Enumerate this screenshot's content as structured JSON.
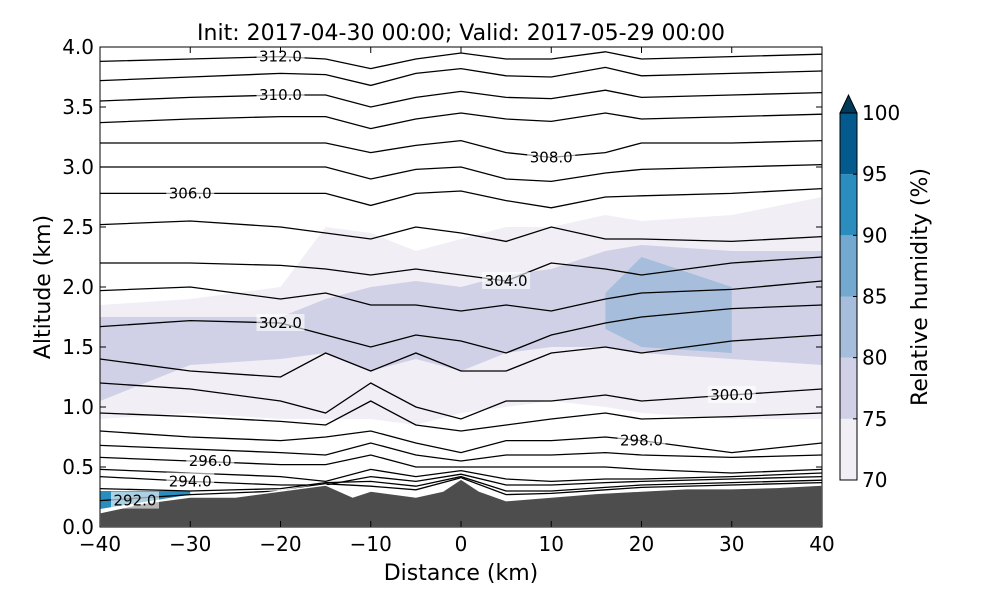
{
  "chart_data": {
    "type": "contour",
    "title": "Init: 2017-04-30 00:00; Valid: 2017-05-29 00:00",
    "x_label": "Distance (km)",
    "y_label": "Altitude (km)",
    "xlim": [
      -40,
      40
    ],
    "ylim": [
      0,
      4
    ],
    "xticks": [
      {
        "value": -40,
        "label": "−40"
      },
      {
        "value": -30,
        "label": "−30"
      },
      {
        "value": -20,
        "label": "−20"
      },
      {
        "value": -10,
        "label": "−10"
      },
      0,
      10,
      20,
      30,
      40
    ],
    "yticks": [
      {
        "value": 0,
        "label": "0.0"
      },
      {
        "value": 0.5,
        "label": "0.5"
      },
      {
        "value": 1,
        "label": "1.0"
      },
      {
        "value": 1.5,
        "label": "1.5"
      },
      {
        "value": 2,
        "label": "2.0"
      },
      {
        "value": 2.5,
        "label": "2.5"
      },
      {
        "value": 3,
        "label": "3.0"
      },
      {
        "value": 3.5,
        "label": "3.5"
      },
      {
        "value": 4,
        "label": "4.0"
      }
    ],
    "grid_x": [
      -40,
      -30,
      -20,
      -15,
      -10,
      -5,
      0,
      5,
      10,
      16,
      20,
      30,
      40
    ],
    "humidity_fill": [
      {
        "level": 70,
        "y_low": [
          0.9,
          0.95,
          0.9,
          0.9,
          0.9,
          0.85,
          0.95,
          1.0,
          1.05,
          1.0,
          0.95,
          0.9,
          0.9
        ],
        "y_high": [
          1.85,
          1.9,
          2.0,
          2.5,
          2.45,
          2.3,
          2.4,
          2.5,
          2.5,
          2.6,
          2.55,
          2.6,
          2.75
        ]
      },
      {
        "level": 75,
        "y_low": [
          1.05,
          1.35,
          1.4,
          1.45,
          1.3,
          1.4,
          1.3,
          1.45,
          1.5,
          1.5,
          1.45,
          1.4,
          1.35
        ],
        "y_high": [
          1.75,
          1.75,
          1.75,
          1.9,
          2.0,
          2.05,
          2.0,
          2.1,
          2.15,
          2.3,
          2.35,
          2.3,
          2.3
        ]
      },
      {
        "level": 80,
        "y_low": [
          null,
          null,
          null,
          null,
          null,
          null,
          null,
          null,
          null,
          1.65,
          1.5,
          1.45,
          null
        ],
        "y_high": [
          null,
          null,
          null,
          null,
          null,
          null,
          null,
          null,
          null,
          1.95,
          2.25,
          2.0,
          null
        ]
      },
      {
        "level": 90,
        "y_low": [
          0.15,
          0.27,
          null,
          null,
          null,
          null,
          null,
          null,
          null,
          null,
          null,
          null,
          null
        ],
        "y_high": [
          0.3,
          0.3,
          null,
          null,
          null,
          null,
          null,
          null,
          null,
          null,
          null,
          null,
          null
        ]
      }
    ],
    "contours": [
      {
        "level": 312,
        "label": "312.0",
        "y": [
          3.88,
          3.9,
          3.92,
          3.9,
          3.82,
          3.9,
          3.95,
          3.9,
          3.9,
          3.96,
          3.9,
          3.92,
          3.94
        ]
      },
      {
        "level": 311,
        "y": [
          3.72,
          3.75,
          3.78,
          3.77,
          3.68,
          3.78,
          3.82,
          3.76,
          3.75,
          3.83,
          3.76,
          3.78,
          3.8
        ]
      },
      {
        "level": 310,
        "label": "310.0",
        "y": [
          3.55,
          3.58,
          3.6,
          3.6,
          3.5,
          3.58,
          3.63,
          3.58,
          3.57,
          3.64,
          3.58,
          3.6,
          3.62
        ]
      },
      {
        "level": 309,
        "y": [
          3.37,
          3.4,
          3.42,
          3.42,
          3.32,
          3.4,
          3.45,
          3.4,
          3.38,
          3.45,
          3.4,
          3.42,
          3.44
        ]
      },
      {
        "level": 308,
        "label": "308.0",
        "y": [
          3.2,
          3.2,
          3.2,
          3.2,
          3.12,
          3.18,
          3.22,
          3.12,
          3.08,
          3.12,
          3.2,
          3.2,
          3.22
        ]
      },
      {
        "level": 307,
        "y": [
          3.0,
          3.0,
          3.0,
          3.0,
          2.9,
          2.98,
          3.0,
          2.9,
          2.88,
          2.95,
          2.98,
          3.0,
          3.02
        ]
      },
      {
        "level": 306,
        "label": "306.0",
        "y": [
          2.78,
          2.78,
          2.78,
          2.78,
          2.68,
          2.78,
          2.8,
          2.72,
          2.66,
          2.75,
          2.76,
          2.78,
          2.82
        ]
      },
      {
        "level": 305,
        "y": [
          2.52,
          2.55,
          2.5,
          2.45,
          2.4,
          2.5,
          2.45,
          2.38,
          2.5,
          2.4,
          2.4,
          2.38,
          2.42
        ]
      },
      {
        "level": 304,
        "label": "304.0",
        "y": [
          2.2,
          2.2,
          2.18,
          2.15,
          2.1,
          2.15,
          2.1,
          2.05,
          2.2,
          2.15,
          2.1,
          2.2,
          2.25
        ]
      },
      {
        "level": 303,
        "y": [
          1.97,
          2.0,
          1.9,
          1.95,
          1.85,
          1.85,
          1.8,
          1.85,
          1.8,
          1.9,
          1.95,
          1.98,
          2.05
        ]
      },
      {
        "level": 302,
        "label": "302.0",
        "y": [
          1.67,
          1.72,
          1.7,
          1.6,
          1.5,
          1.6,
          1.55,
          1.45,
          1.6,
          1.7,
          1.75,
          1.82,
          1.85
        ]
      },
      {
        "level": 301,
        "y": [
          1.4,
          1.3,
          1.25,
          1.45,
          1.3,
          1.45,
          1.3,
          1.3,
          1.45,
          1.5,
          1.45,
          1.55,
          1.6
        ]
      },
      {
        "level": 300,
        "label": "300.0",
        "y": [
          1.2,
          1.15,
          1.05,
          0.95,
          1.2,
          1.0,
          0.9,
          1.05,
          1.05,
          1.1,
          1.05,
          1.1,
          1.15
        ]
      },
      {
        "level": 299,
        "y": [
          0.95,
          0.92,
          0.88,
          0.85,
          1.05,
          0.85,
          0.8,
          0.85,
          0.9,
          0.95,
          0.9,
          0.92,
          0.95
        ]
      },
      {
        "level": 298,
        "label": "298.0",
        "y": [
          0.8,
          0.75,
          0.72,
          0.75,
          0.8,
          0.7,
          0.62,
          0.72,
          0.72,
          0.75,
          0.72,
          0.62,
          0.7
        ]
      },
      {
        "level": 297,
        "y": [
          0.68,
          0.65,
          0.62,
          0.6,
          0.7,
          0.6,
          0.55,
          0.6,
          0.6,
          0.62,
          0.6,
          0.58,
          0.6
        ]
      },
      {
        "level": 296,
        "label": "296.0",
        "y": [
          0.58,
          0.55,
          0.52,
          0.52,
          0.6,
          0.5,
          0.5,
          0.5,
          0.5,
          0.5,
          0.48,
          0.45,
          0.48
        ]
      },
      {
        "level": 295,
        "y": [
          0.48,
          0.45,
          0.42,
          0.38,
          0.48,
          0.42,
          0.47,
          0.4,
          0.38,
          0.4,
          0.4,
          0.42,
          0.45
        ]
      },
      {
        "level": 294,
        "label": "294.0",
        "y": [
          0.42,
          0.38,
          0.35,
          0.35,
          0.42,
          0.38,
          0.44,
          0.35,
          0.35,
          0.37,
          0.38,
          0.4,
          0.42
        ]
      },
      {
        "level": 293,
        "y": [
          0.32,
          0.3,
          0.32,
          0.37,
          0.38,
          0.34,
          0.42,
          0.3,
          0.3,
          0.33,
          0.35,
          0.37,
          0.39
        ]
      },
      {
        "level": 292,
        "label": "292.0",
        "y": [
          0.22,
          0.27,
          0.3,
          0.36,
          0.34,
          0.31,
          0.41,
          0.27,
          0.28,
          0.31,
          0.33,
          0.35,
          0.37
        ]
      }
    ],
    "terrain": {
      "color": "#4d4d4d",
      "x": [
        -40,
        -35,
        -30,
        -25,
        -20,
        -15,
        -12,
        -10,
        -5,
        -2,
        0,
        2,
        5,
        10,
        15,
        20,
        25,
        30,
        35,
        40
      ],
      "y": [
        0.12,
        0.2,
        0.25,
        0.25,
        0.3,
        0.35,
        0.25,
        0.3,
        0.25,
        0.3,
        0.4,
        0.3,
        0.22,
        0.25,
        0.28,
        0.3,
        0.32,
        0.32,
        0.33,
        0.35
      ]
    },
    "colorbar": {
      "label": "Relative humidity (%)",
      "ticks": [
        70,
        75,
        80,
        85,
        90,
        95,
        100
      ],
      "colors": [
        "#f1eef6",
        "#d0d1e6",
        "#a6bddb",
        "#74a9cf",
        "#2b8cbe",
        "#045a8d"
      ],
      "extend_color": "#023858"
    }
  }
}
